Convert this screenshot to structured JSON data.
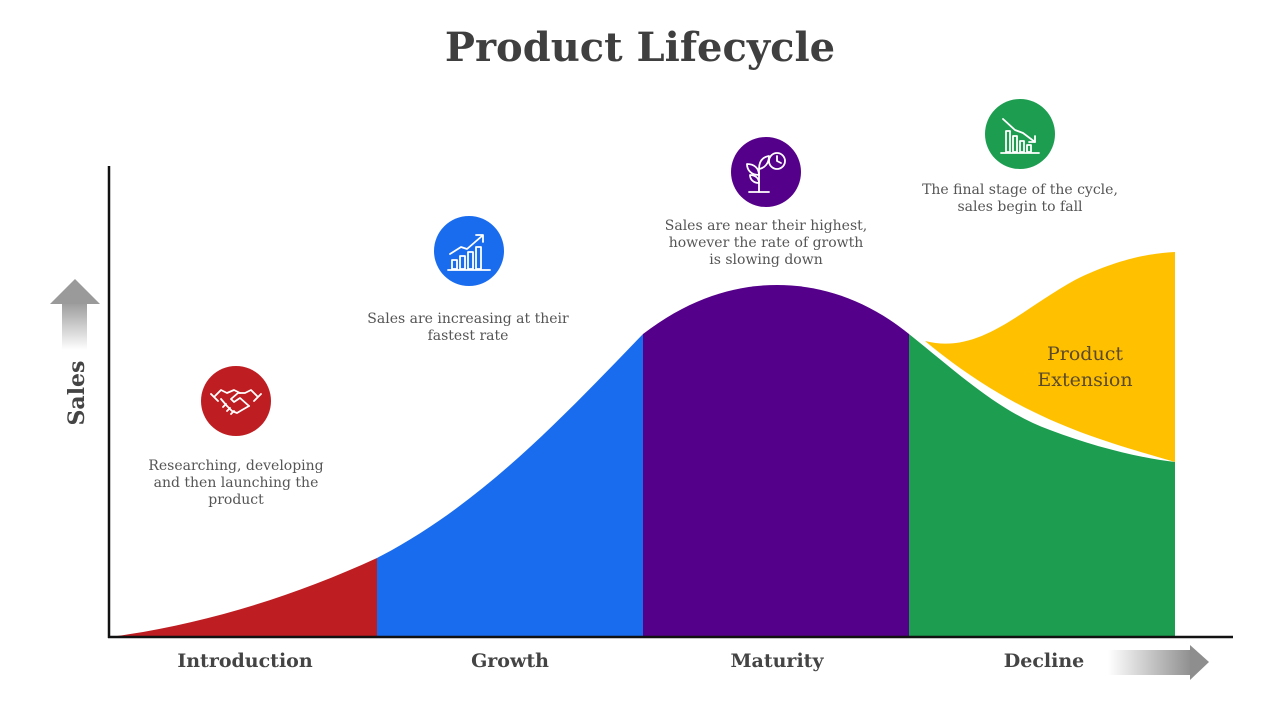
{
  "title": "Product Lifecycle",
  "axis": {
    "y_label": "Sales"
  },
  "stages": [
    {
      "name": "Introduction",
      "description": "Researching, developing and then launching the product",
      "color": "#be1e22",
      "icon": "handshake-icon"
    },
    {
      "name": "Growth",
      "description": "Sales are increasing at their fastest rate",
      "color": "#1a6cee",
      "icon": "growth-chart-icon"
    },
    {
      "name": "Maturity",
      "description": "Sales are near their highest, however the rate of growth is slowing down",
      "color": "#55008a",
      "icon": "plant-clock-icon"
    },
    {
      "name": "Decline",
      "description": "The final stage of the cycle, sales begin to fall",
      "color": "#1c9d50",
      "icon": "declining-chart-icon"
    }
  ],
  "extension": {
    "label": "Product Extension",
    "color": "#ffc000"
  }
}
